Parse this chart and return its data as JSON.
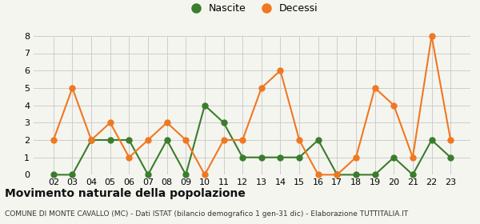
{
  "years": [
    "02",
    "03",
    "04",
    "05",
    "06",
    "07",
    "08",
    "09",
    "10",
    "11",
    "12",
    "13",
    "14",
    "15",
    "16",
    "17",
    "18",
    "19",
    "20",
    "21",
    "22",
    "23"
  ],
  "nascite": [
    0,
    0,
    2,
    2,
    2,
    0,
    2,
    0,
    4,
    3,
    1,
    1,
    1,
    1,
    2,
    0,
    0,
    0,
    1,
    0,
    2,
    1
  ],
  "decessi": [
    2,
    5,
    2,
    3,
    1,
    2,
    3,
    2,
    0,
    2,
    2,
    5,
    6,
    2,
    0,
    0,
    1,
    5,
    4,
    1,
    8,
    2
  ],
  "nascite_color": "#3a7d2c",
  "decessi_color": "#f07820",
  "nascite_label": "Nascite",
  "decessi_label": "Decessi",
  "title": "Movimento naturale della popolazione",
  "subtitle": "COMUNE DI MONTE CAVALLO (MC) - Dati ISTAT (bilancio demografico 1 gen-31 dic) - Elaborazione TUTTITALIA.IT",
  "ylim": [
    0,
    8
  ],
  "yticks": [
    0,
    1,
    2,
    3,
    4,
    5,
    6,
    7,
    8
  ],
  "background_color": "#f5f5f0",
  "grid_color": "#cccccc",
  "marker": "o",
  "markersize": 5,
  "linewidth": 1.5,
  "title_fontsize": 10,
  "subtitle_fontsize": 6.5
}
